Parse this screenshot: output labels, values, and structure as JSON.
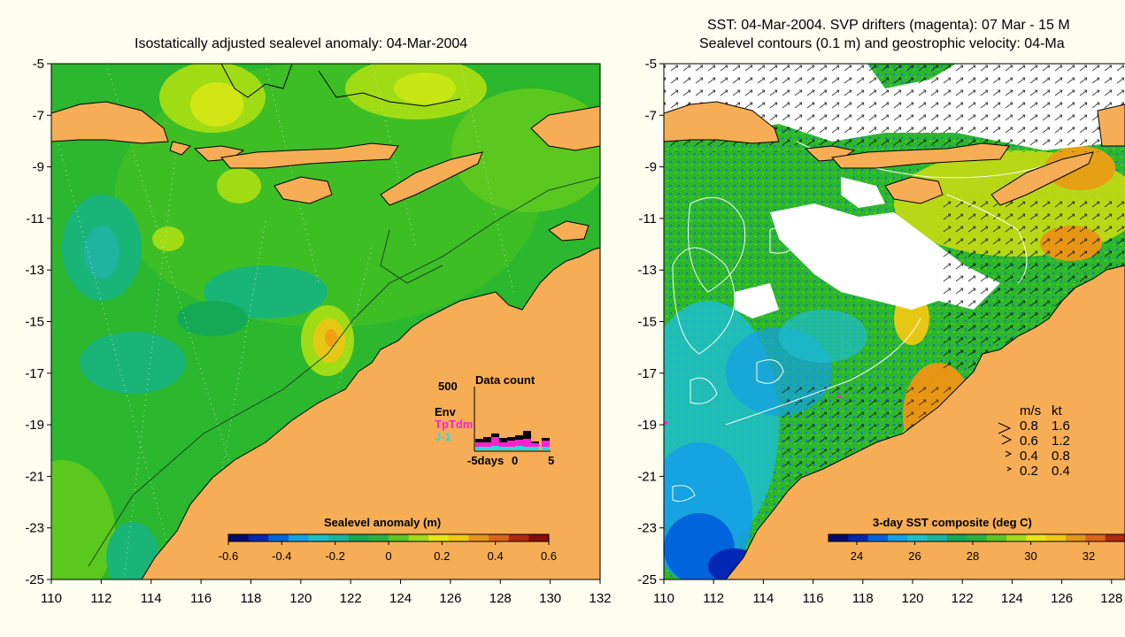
{
  "left_panel": {
    "title": "Isostatically adjusted sealevel anomaly: 04-Mar-2004",
    "colorbar_label": "Sealevel anomaly (m)",
    "colorbar_ticks": [
      "-0.6",
      "-0.4",
      "-0.2",
      "0",
      "0.2",
      "0.4",
      "0.6"
    ],
    "colorbar_colors": [
      "#000a6e",
      "#0028b4",
      "#0064dc",
      "#14a0e6",
      "#1ebecd",
      "#19b4a0",
      "#14aa55",
      "#28b43c",
      "#5ac81e",
      "#a0dc14",
      "#e6e614",
      "#f0c814",
      "#e69614",
      "#dc6414",
      "#b4280a",
      "#8c0a0a"
    ],
    "data_count": {
      "title": "Data count",
      "ymax_label": "500",
      "legend": [
        "Env",
        "TpTdm",
        "J-1"
      ],
      "legend_colors": [
        "#000000",
        "#ff22cc",
        "#22dddd"
      ],
      "xticks": [
        "-5days",
        "0",
        "5"
      ]
    }
  },
  "right_panel": {
    "title_line1": "SST: 04-Mar-2004. SVP drifters (magenta): 07 Mar - 15 M",
    "title_line2": "Sealevel contours (0.1 m) and geostrophic velocity: 04-Ma",
    "colorbar_label": "3-day SST composite (deg C)",
    "colorbar_ticks": [
      "24",
      "26",
      "28",
      "30",
      "32"
    ],
    "colorbar_colors": [
      "#000a6e",
      "#0028b4",
      "#0064dc",
      "#14a0e6",
      "#1ebecd",
      "#19b4a0",
      "#14aa55",
      "#28b43c",
      "#5ac81e",
      "#a0dc14",
      "#e6e614",
      "#f0c814",
      "#e69614",
      "#dc6414",
      "#b4280a"
    ],
    "speed_legend": {
      "header": [
        "m/s",
        "kt"
      ],
      "rows": [
        [
          "0.8",
          "1.6"
        ],
        [
          "0.6",
          "1.2"
        ],
        [
          "0.4",
          "0.8"
        ],
        [
          "0.2",
          "0.4"
        ]
      ]
    }
  },
  "axes": {
    "y_ticks": [
      "-5",
      "-7",
      "-9",
      "-11",
      "-13",
      "-15",
      "-17",
      "-19",
      "-21",
      "-23",
      "-25"
    ],
    "x_ticks_left": [
      "110",
      "112",
      "114",
      "116",
      "118",
      "120",
      "122",
      "124",
      "126",
      "128",
      "130",
      "132"
    ],
    "x_ticks_right": [
      "110",
      "112",
      "114",
      "116",
      "118",
      "120",
      "122",
      "124",
      "126",
      "128"
    ]
  },
  "colors": {
    "background": "#fdfdf0",
    "land": "#f6ad55",
    "ocean_green": "#2bb72e",
    "cloud": "#ffffff"
  }
}
